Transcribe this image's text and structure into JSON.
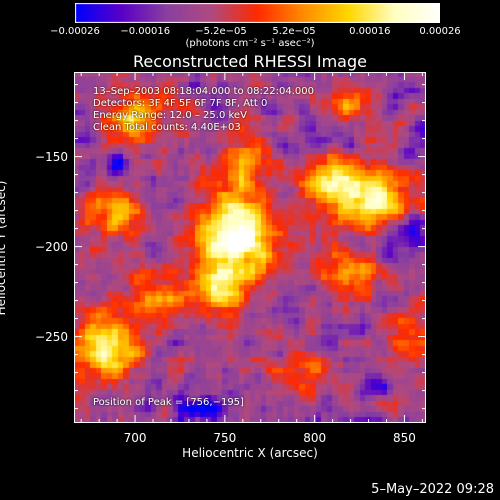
{
  "chart_data": {
    "type": "heatmap",
    "title": "Reconstructed RHESSI Image",
    "xlabel": "Heliocentric X (arcsec)",
    "ylabel": "Heliocentric Y (arcsec)",
    "xlim": [
      666,
      862
    ],
    "ylim": [
      -298,
      -103
    ],
    "x_ticks": [
      700,
      750,
      800,
      850
    ],
    "x_tick_labels": [
      "700",
      "750",
      "800",
      "850"
    ],
    "y_ticks": [
      -150,
      -200,
      -250
    ],
    "y_tick_labels": [
      "−150",
      "−200",
      "−250"
    ],
    "colorbar": {
      "range": [
        -0.00026,
        0.00026
      ],
      "ticks": [
        -0.00026,
        -0.00016,
        -5.2e-05,
        5.2e-05,
        0.00016,
        0.00026
      ],
      "tick_labels": [
        "−0.00026",
        "−0.00016",
        "−5.2e−05",
        "5.2e−05",
        "0.00016",
        "0.00026"
      ],
      "units": "(photons cm⁻² s⁻¹ asec⁻²)",
      "colormap": [
        "#0000ff",
        "#5a00c8",
        "#8a40a0",
        "#b04a80",
        "#ff2a00",
        "#ff8c00",
        "#ffd700",
        "#ffffc0",
        "#ffffff"
      ]
    },
    "annotations": {
      "time_range": "13–Sep–2003 08:18:04.000 to 08:22:04.000",
      "detectors": "Detectors: 3F 4F 5F 6F 7F 8F, Att 0",
      "energy": "Energy Range: 12.0 – 25.0 keV",
      "clean": "Clean     Total counts: 4.40E+03",
      "peak": "Position of Peak = [756,−195]"
    },
    "peak": [
      756,
      -195
    ],
    "sources": [
      {
        "x": 756,
        "y": -195,
        "sx": 16,
        "sy": 18,
        "amp": 1.0
      },
      {
        "x": 745,
        "y": -225,
        "sx": 9,
        "sy": 9,
        "amp": 0.55
      },
      {
        "x": 833,
        "y": -173,
        "sx": 16,
        "sy": 12,
        "amp": 0.72
      },
      {
        "x": 808,
        "y": -165,
        "sx": 11,
        "sy": 10,
        "amp": 0.55
      },
      {
        "x": 684,
        "y": -255,
        "sx": 14,
        "sy": 14,
        "amp": 0.78
      },
      {
        "x": 700,
        "y": -130,
        "sx": 12,
        "sy": 10,
        "amp": 0.6
      },
      {
        "x": 690,
        "y": -180,
        "sx": 10,
        "sy": 14,
        "amp": 0.45
      },
      {
        "x": 820,
        "y": -215,
        "sx": 12,
        "sy": 10,
        "amp": 0.45
      },
      {
        "x": 820,
        "y": -120,
        "sx": 9,
        "sy": 8,
        "amp": 0.4
      },
      {
        "x": 790,
        "y": -270,
        "sx": 14,
        "sy": 10,
        "amp": 0.3
      },
      {
        "x": 760,
        "y": -150,
        "sx": 10,
        "sy": 10,
        "amp": 0.42
      },
      {
        "x": 850,
        "y": -250,
        "sx": 9,
        "sy": 12,
        "amp": 0.35
      },
      {
        "x": 712,
        "y": -228,
        "sx": 10,
        "sy": 10,
        "amp": 0.45
      }
    ],
    "negative_regions": [
      {
        "x": 855,
        "y": -190,
        "sx": 6,
        "sy": 6,
        "amp": 0.5
      },
      {
        "x": 740,
        "y": -290,
        "sx": 8,
        "sy": 4,
        "amp": 0.5
      },
      {
        "x": 690,
        "y": -155,
        "sx": 5,
        "sy": 5,
        "amp": 0.4
      },
      {
        "x": 835,
        "y": -275,
        "sx": 5,
        "sy": 5,
        "amp": 0.35
      },
      {
        "x": 785,
        "y": -145,
        "sx": 5,
        "sy": 5,
        "amp": 0.3
      }
    ],
    "grid": false
  },
  "footer_date": "5–May–2022 09:28"
}
